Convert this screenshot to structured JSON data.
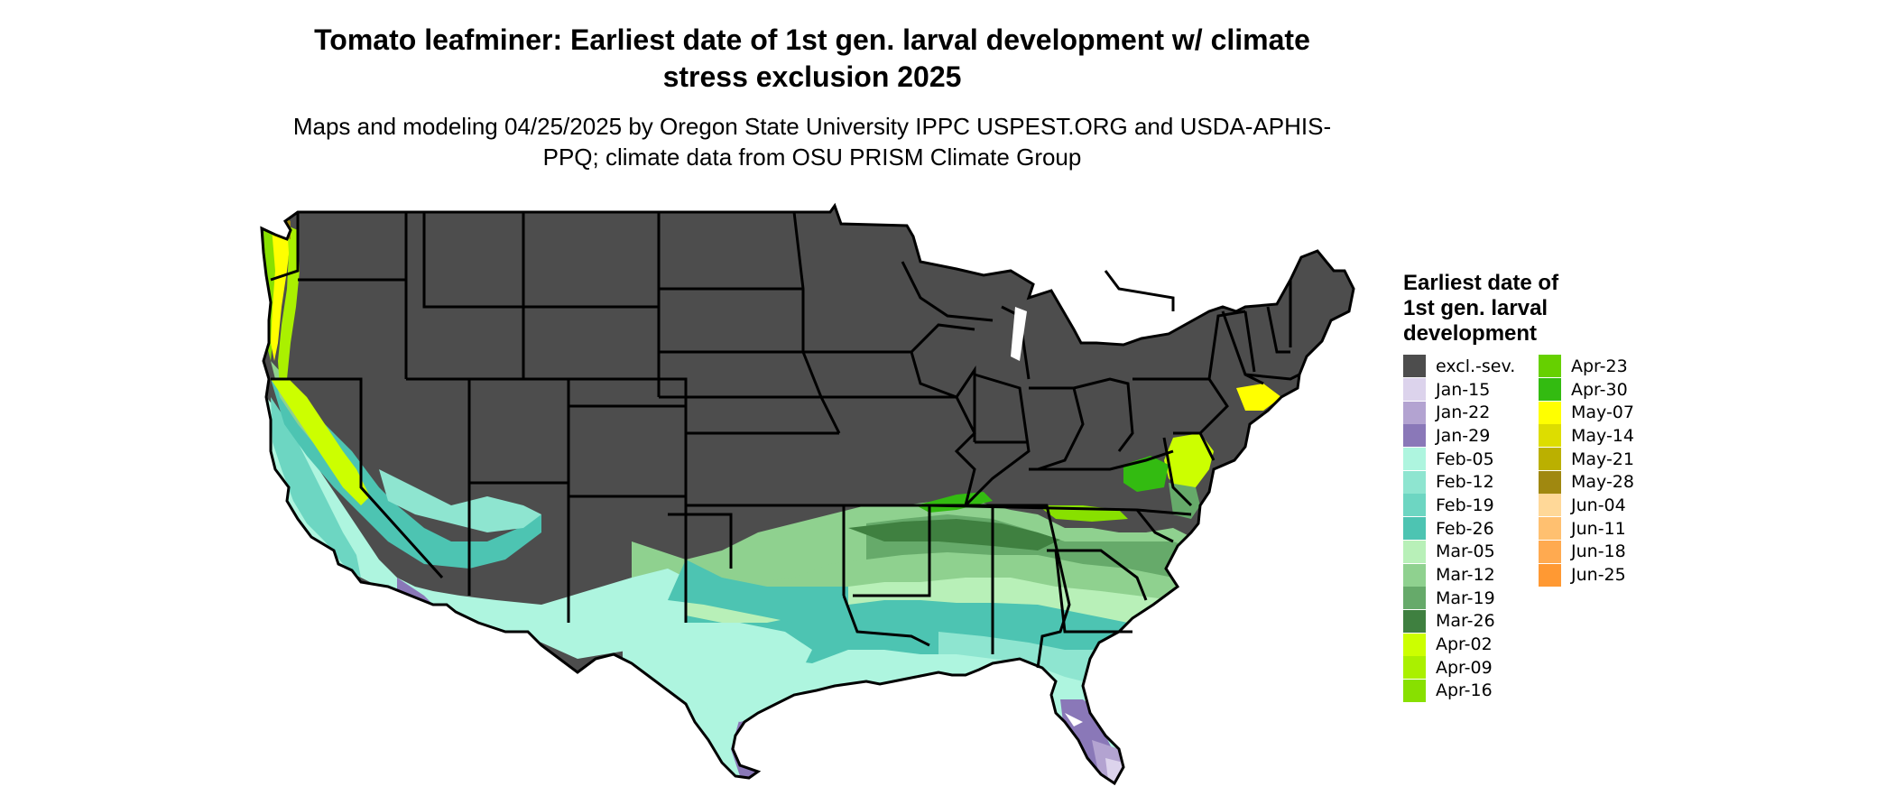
{
  "title": "Tomato leafminer: Earliest date of 1st gen. larval development w/ climate stress exclusion 2025",
  "subtitle": "Maps and modeling 04/25/2025 by Oregon State University IPPC USPEST.ORG and USDA-APHIS-PPQ; climate data from OSU PRISM Climate Group",
  "legend": {
    "title": "Earliest date of 1st gen. larval development",
    "items": [
      {
        "label": "excl.-sev.",
        "color": "#4d4d4d"
      },
      {
        "label": "Jan-15",
        "color": "#dcd3ec"
      },
      {
        "label": "Jan-22",
        "color": "#b3a3d1"
      },
      {
        "label": "Jan-29",
        "color": "#8a78b8"
      },
      {
        "label": "Feb-05",
        "color": "#aef5df"
      },
      {
        "label": "Feb-12",
        "color": "#8ee5d0"
      },
      {
        "label": "Feb-19",
        "color": "#6dd6c2"
      },
      {
        "label": "Feb-26",
        "color": "#4dc4b2"
      },
      {
        "label": "Mar-05",
        "color": "#b8f0b8"
      },
      {
        "label": "Mar-12",
        "color": "#8fd18f"
      },
      {
        "label": "Mar-19",
        "color": "#66aa6a"
      },
      {
        "label": "Mar-26",
        "color": "#3f8040"
      },
      {
        "label": "Apr-02",
        "color": "#ccff00"
      },
      {
        "label": "Apr-09",
        "color": "#aaf000"
      },
      {
        "label": "Apr-16",
        "color": "#88e000"
      },
      {
        "label": "Apr-23",
        "color": "#66d000"
      },
      {
        "label": "Apr-30",
        "color": "#33bb11"
      },
      {
        "label": "May-07",
        "color": "#ffff00"
      },
      {
        "label": "May-14",
        "color": "#dddd00"
      },
      {
        "label": "May-21",
        "color": "#bbb000"
      },
      {
        "label": "May-28",
        "color": "#a08810"
      },
      {
        "label": "Jun-04",
        "color": "#ffd898"
      },
      {
        "label": "Jun-11",
        "color": "#ffc070"
      },
      {
        "label": "Jun-18",
        "color": "#ffaa50"
      },
      {
        "label": "Jun-25",
        "color": "#ff9933"
      }
    ]
  }
}
